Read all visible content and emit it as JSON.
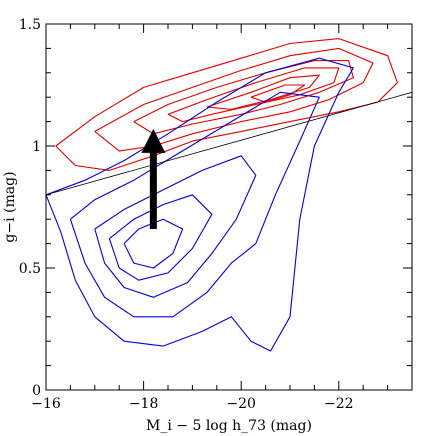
{
  "chart_data": {
    "type": "contour",
    "title": "",
    "xlabel": "M_i − 5 log h_73 (mag)",
    "ylabel": "g−i (mag)",
    "xlim": [
      -16,
      -23.5
    ],
    "ylim": [
      0,
      1.5
    ],
    "x_ticks": [
      {
        "value": -16,
        "label": "−16"
      },
      {
        "value": -18,
        "label": "−18"
      },
      {
        "value": -20,
        "label": "−20"
      },
      {
        "value": -22,
        "label": "−22"
      }
    ],
    "y_ticks": [
      {
        "value": 0,
        "label": "0"
      },
      {
        "value": 0.5,
        "label": "0.5"
      },
      {
        "value": 1,
        "label": "1"
      },
      {
        "value": 1.5,
        "label": "1.5"
      }
    ],
    "grid": false,
    "colors": {
      "red_population": "#e00000",
      "blue_population": "#0000e0",
      "divider": "#000000",
      "arrow": "#000000"
    },
    "series": [
      {
        "color": "red",
        "contours": [
          [
            [
              -16.2,
              1.0
            ],
            [
              -17.0,
              1.12
            ],
            [
              -18.0,
              1.24
            ],
            [
              -19.0,
              1.3
            ],
            [
              -20.0,
              1.36
            ],
            [
              -21.0,
              1.42
            ],
            [
              -22.0,
              1.44
            ],
            [
              -23.0,
              1.37
            ],
            [
              -23.2,
              1.26
            ],
            [
              -22.8,
              1.18
            ],
            [
              -22.0,
              1.14
            ],
            [
              -21.0,
              1.1
            ],
            [
              -20.0,
              1.06
            ],
            [
              -19.0,
              1.02
            ],
            [
              -18.2,
              0.96
            ],
            [
              -17.3,
              0.9
            ],
            [
              -16.6,
              0.92
            ],
            [
              -16.2,
              1.0
            ]
          ],
          [
            [
              -17.0,
              1.06
            ],
            [
              -18.0,
              1.17
            ],
            [
              -19.0,
              1.24
            ],
            [
              -20.0,
              1.31
            ],
            [
              -21.0,
              1.37
            ],
            [
              -22.0,
              1.4
            ],
            [
              -22.7,
              1.34
            ],
            [
              -22.5,
              1.26
            ],
            [
              -21.8,
              1.19
            ],
            [
              -21.0,
              1.14
            ],
            [
              -20.0,
              1.1
            ],
            [
              -19.0,
              1.05
            ],
            [
              -18.2,
              1.0
            ],
            [
              -17.5,
              0.98
            ],
            [
              -17.0,
              1.06
            ]
          ],
          [
            [
              -17.8,
              1.1
            ],
            [
              -18.5,
              1.17
            ],
            [
              -19.5,
              1.24
            ],
            [
              -20.5,
              1.3
            ],
            [
              -21.5,
              1.35
            ],
            [
              -22.2,
              1.35
            ],
            [
              -22.3,
              1.28
            ],
            [
              -21.6,
              1.22
            ],
            [
              -20.8,
              1.17
            ],
            [
              -20.0,
              1.13
            ],
            [
              -19.0,
              1.09
            ],
            [
              -18.2,
              1.05
            ],
            [
              -17.8,
              1.1
            ]
          ],
          [
            [
              -18.5,
              1.13
            ],
            [
              -19.3,
              1.19
            ],
            [
              -20.3,
              1.26
            ],
            [
              -21.3,
              1.32
            ],
            [
              -22.0,
              1.32
            ],
            [
              -21.9,
              1.26
            ],
            [
              -21.2,
              1.21
            ],
            [
              -20.3,
              1.17
            ],
            [
              -19.4,
              1.13
            ],
            [
              -18.8,
              1.1
            ],
            [
              -18.5,
              1.13
            ]
          ],
          [
            [
              -19.3,
              1.16
            ],
            [
              -20.2,
              1.22
            ],
            [
              -21.0,
              1.28
            ],
            [
              -21.6,
              1.29
            ],
            [
              -21.4,
              1.24
            ],
            [
              -20.6,
              1.19
            ],
            [
              -19.8,
              1.15
            ],
            [
              -19.3,
              1.16
            ]
          ],
          [
            [
              -20.2,
              1.2
            ],
            [
              -20.9,
              1.25
            ],
            [
              -21.3,
              1.25
            ],
            [
              -21.0,
              1.21
            ],
            [
              -20.5,
              1.18
            ],
            [
              -20.2,
              1.2
            ]
          ]
        ]
      },
      {
        "color": "blue",
        "contours": [
          [
            [
              -16.0,
              0.8
            ],
            [
              -16.3,
              0.65
            ],
            [
              -16.6,
              0.45
            ],
            [
              -17.0,
              0.3
            ],
            [
              -17.6,
              0.2
            ],
            [
              -18.4,
              0.18
            ],
            [
              -19.2,
              0.24
            ],
            [
              -19.8,
              0.3
            ],
            [
              -20.2,
              0.2
            ],
            [
              -20.6,
              0.16
            ],
            [
              -21.0,
              0.3
            ],
            [
              -21.2,
              0.7
            ],
            [
              -21.5,
              1.0
            ],
            [
              -22.0,
              1.22
            ],
            [
              -22.3,
              1.32
            ],
            [
              -21.6,
              1.36
            ],
            [
              -20.5,
              1.3
            ],
            [
              -19.5,
              1.18
            ],
            [
              -18.5,
              1.05
            ],
            [
              -17.6,
              0.94
            ],
            [
              -16.8,
              0.86
            ],
            [
              -16.0,
              0.8
            ]
          ],
          [
            [
              -16.5,
              0.7
            ],
            [
              -16.8,
              0.52
            ],
            [
              -17.2,
              0.38
            ],
            [
              -17.8,
              0.3
            ],
            [
              -18.6,
              0.3
            ],
            [
              -19.3,
              0.4
            ],
            [
              -19.8,
              0.52
            ],
            [
              -20.3,
              0.6
            ],
            [
              -20.7,
              0.8
            ],
            [
              -21.2,
              1.02
            ],
            [
              -21.6,
              1.2
            ],
            [
              -20.8,
              1.22
            ],
            [
              -19.8,
              1.1
            ],
            [
              -18.8,
              0.98
            ],
            [
              -17.8,
              0.86
            ],
            [
              -17.0,
              0.78
            ],
            [
              -16.5,
              0.7
            ]
          ],
          [
            [
              -17.0,
              0.66
            ],
            [
              -17.2,
              0.52
            ],
            [
              -17.6,
              0.42
            ],
            [
              -18.2,
              0.38
            ],
            [
              -18.9,
              0.44
            ],
            [
              -19.4,
              0.56
            ],
            [
              -19.9,
              0.7
            ],
            [
              -20.3,
              0.88
            ],
            [
              -20.0,
              0.96
            ],
            [
              -19.2,
              0.9
            ],
            [
              -18.4,
              0.82
            ],
            [
              -17.6,
              0.74
            ],
            [
              -17.0,
              0.66
            ]
          ],
          [
            [
              -17.3,
              0.62
            ],
            [
              -17.5,
              0.5
            ],
            [
              -17.9,
              0.45
            ],
            [
              -18.5,
              0.48
            ],
            [
              -19.0,
              0.58
            ],
            [
              -19.4,
              0.72
            ],
            [
              -19.0,
              0.8
            ],
            [
              -18.4,
              0.76
            ],
            [
              -17.8,
              0.7
            ],
            [
              -17.3,
              0.62
            ]
          ],
          [
            [
              -17.6,
              0.6
            ],
            [
              -17.8,
              0.52
            ],
            [
              -18.2,
              0.5
            ],
            [
              -18.6,
              0.56
            ],
            [
              -18.8,
              0.66
            ],
            [
              -18.4,
              0.7
            ],
            [
              -17.9,
              0.66
            ],
            [
              -17.6,
              0.6
            ]
          ]
        ]
      }
    ],
    "divider_line": {
      "x": [
        -16.0,
        -23.5
      ],
      "y": [
        0.8,
        1.22
      ]
    },
    "arrow": {
      "x": -18.2,
      "from_y": 0.66,
      "to_y": 1.07
    }
  }
}
